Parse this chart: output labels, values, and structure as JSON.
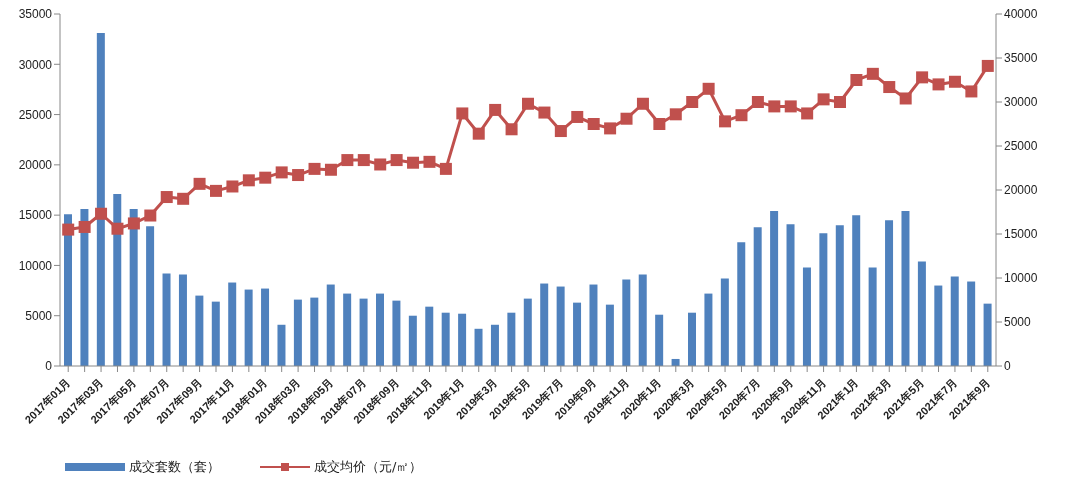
{
  "chart_data": {
    "type": "bar",
    "categories": [
      "2017年01月",
      null,
      "2017年03月",
      null,
      "2017年05月",
      null,
      "2017年07月",
      null,
      "2017年09月",
      null,
      "2017年11月",
      null,
      "2018年01月",
      null,
      "2018年03月",
      null,
      "2018年05月",
      null,
      "2018年07月",
      null,
      "2018年09月",
      null,
      "2018年11月",
      null,
      "2019年1月",
      null,
      "2019年3月",
      null,
      "2019年5月",
      null,
      "2019年7月",
      null,
      "2019年9月",
      null,
      "2019年11月",
      null,
      "2020年1月",
      null,
      "2020年3月",
      null,
      "2020年5月",
      null,
      "2020年7月",
      null,
      "2020年9月",
      null,
      "2020年11月",
      null,
      "2021年1月",
      null,
      "2021年3月",
      null,
      "2021年5月",
      null,
      "2021年7月",
      null,
      "2021年9月"
    ],
    "series": [
      {
        "name": "成交套数（套）",
        "color": "#4f81bd",
        "values": [
          15100,
          15600,
          33100,
          17100,
          15600,
          13900,
          9200,
          9100,
          7000,
          6400,
          8300,
          7600,
          7700,
          4100,
          6600,
          6800,
          8100,
          7200,
          6700,
          7200,
          6500,
          5000,
          5900,
          5300,
          5200,
          3700,
          4100,
          5300,
          6700,
          8200,
          7900,
          6300,
          8100,
          6100,
          8600,
          9100,
          5100,
          700,
          5300,
          7200,
          8700,
          12300,
          13800,
          15400,
          14100,
          9800,
          13200,
          14000,
          15000,
          9800,
          14500,
          15400,
          10400,
          8000,
          8900,
          8400,
          6200
        ]
      },
      {
        "name": "成交均价（元/㎡）",
        "type": "line",
        "axis": "y2",
        "color": "#c0504d",
        "values": [
          15500,
          15800,
          17300,
          15600,
          16200,
          17100,
          19200,
          19000,
          20700,
          19900,
          20400,
          21100,
          21400,
          22000,
          21700,
          22400,
          22300,
          23400,
          23400,
          22900,
          23400,
          23100,
          23200,
          22400,
          28700,
          26400,
          29100,
          26900,
          29800,
          28800,
          26700,
          28300,
          27500,
          27000,
          28100,
          29800,
          27500,
          28600,
          30000,
          31500,
          27800,
          28500,
          30000,
          29500,
          29500,
          28700,
          30300,
          30000,
          32500,
          33200,
          31700,
          30400,
          32800,
          32000,
          32300,
          31200,
          34100
        ]
      }
    ],
    "ylim": [
      0,
      35000
    ],
    "yticks": [
      0,
      5000,
      10000,
      15000,
      20000,
      25000,
      30000,
      35000
    ],
    "y2lim": [
      0,
      40000
    ],
    "y2ticks": [
      0,
      5000,
      10000,
      15000,
      20000,
      25000,
      30000,
      35000,
      40000
    ],
    "grid": false,
    "legend": "bottom left",
    "marker": "square"
  }
}
